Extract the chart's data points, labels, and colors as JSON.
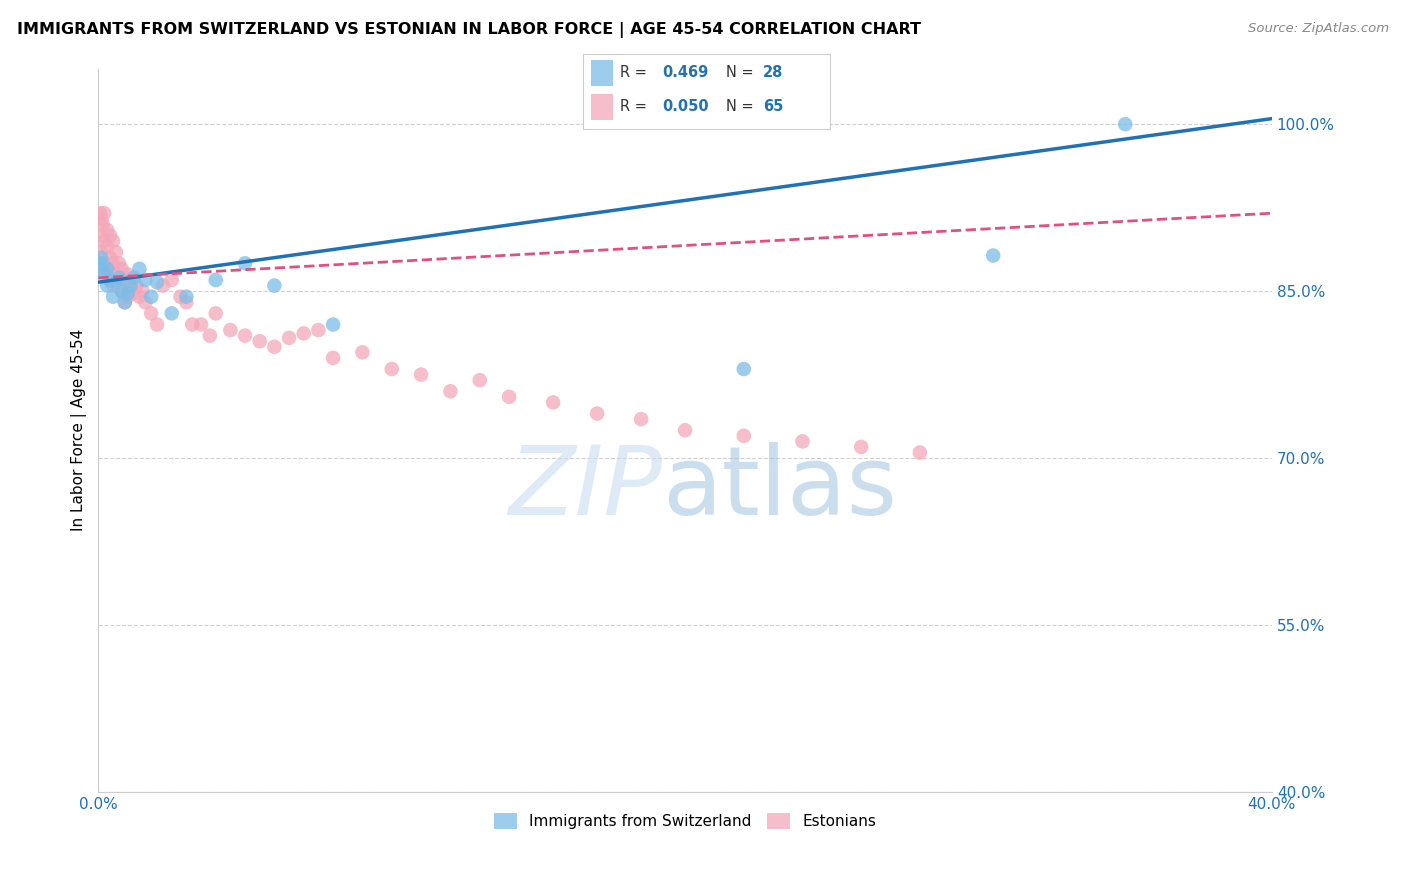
{
  "title": "IMMIGRANTS FROM SWITZERLAND VS ESTONIAN IN LABOR FORCE | AGE 45-54 CORRELATION CHART",
  "source": "Source: ZipAtlas.com",
  "ylabel": "In Labor Force | Age 45-54",
  "xlim": [
    0.0,
    0.4
  ],
  "ylim": [
    0.4,
    1.05
  ],
  "xtick_positions": [
    0.0,
    0.1,
    0.2,
    0.3,
    0.4
  ],
  "xticklabels": [
    "0.0%",
    "",
    "",
    "",
    "40.0%"
  ],
  "ytick_positions": [
    0.4,
    0.55,
    0.7,
    0.85,
    1.0
  ],
  "yticklabels": [
    "40.0%",
    "55.0%",
    "70.0%",
    "85.0%",
    "100.0%"
  ],
  "swiss_color": "#7bbde8",
  "estonian_color": "#f4a7b9",
  "swiss_line_color": "#2171b5",
  "estonian_line_color": "#e05080",
  "R_swiss": 0.469,
  "N_swiss": 28,
  "R_estonian": 0.05,
  "N_estonian": 65,
  "swiss_x": [
    0.001,
    0.001,
    0.001,
    0.002,
    0.003,
    0.003,
    0.004,
    0.005,
    0.006,
    0.007,
    0.008,
    0.009,
    0.01,
    0.011,
    0.012,
    0.014,
    0.016,
    0.018,
    0.02,
    0.025,
    0.03,
    0.04,
    0.05,
    0.06,
    0.08,
    0.22,
    0.305,
    0.35
  ],
  "swiss_y": [
    0.87,
    0.875,
    0.88,
    0.865,
    0.855,
    0.87,
    0.86,
    0.845,
    0.858,
    0.862,
    0.85,
    0.84,
    0.848,
    0.855,
    0.862,
    0.87,
    0.86,
    0.845,
    0.858,
    0.83,
    0.845,
    0.86,
    0.875,
    0.855,
    0.82,
    0.78,
    0.882,
    1.0
  ],
  "estonian_x": [
    0.0005,
    0.001,
    0.001,
    0.001,
    0.0015,
    0.002,
    0.002,
    0.002,
    0.003,
    0.003,
    0.003,
    0.004,
    0.004,
    0.004,
    0.005,
    0.005,
    0.005,
    0.006,
    0.006,
    0.007,
    0.007,
    0.008,
    0.008,
    0.009,
    0.009,
    0.01,
    0.01,
    0.011,
    0.012,
    0.013,
    0.014,
    0.015,
    0.016,
    0.018,
    0.02,
    0.022,
    0.025,
    0.028,
    0.03,
    0.032,
    0.035,
    0.038,
    0.04,
    0.045,
    0.05,
    0.055,
    0.06,
    0.065,
    0.07,
    0.075,
    0.08,
    0.09,
    0.1,
    0.11,
    0.12,
    0.13,
    0.14,
    0.155,
    0.17,
    0.185,
    0.2,
    0.22,
    0.24,
    0.26,
    0.28
  ],
  "estonian_y": [
    0.92,
    0.915,
    0.9,
    0.885,
    0.91,
    0.92,
    0.895,
    0.875,
    0.905,
    0.89,
    0.87,
    0.9,
    0.88,
    0.86,
    0.895,
    0.875,
    0.855,
    0.885,
    0.865,
    0.875,
    0.855,
    0.87,
    0.85,
    0.86,
    0.84,
    0.865,
    0.845,
    0.858,
    0.848,
    0.855,
    0.845,
    0.85,
    0.84,
    0.83,
    0.82,
    0.855,
    0.86,
    0.845,
    0.84,
    0.82,
    0.82,
    0.81,
    0.83,
    0.815,
    0.81,
    0.805,
    0.8,
    0.808,
    0.812,
    0.815,
    0.79,
    0.795,
    0.78,
    0.775,
    0.76,
    0.77,
    0.755,
    0.75,
    0.74,
    0.735,
    0.725,
    0.72,
    0.715,
    0.71,
    0.705
  ]
}
